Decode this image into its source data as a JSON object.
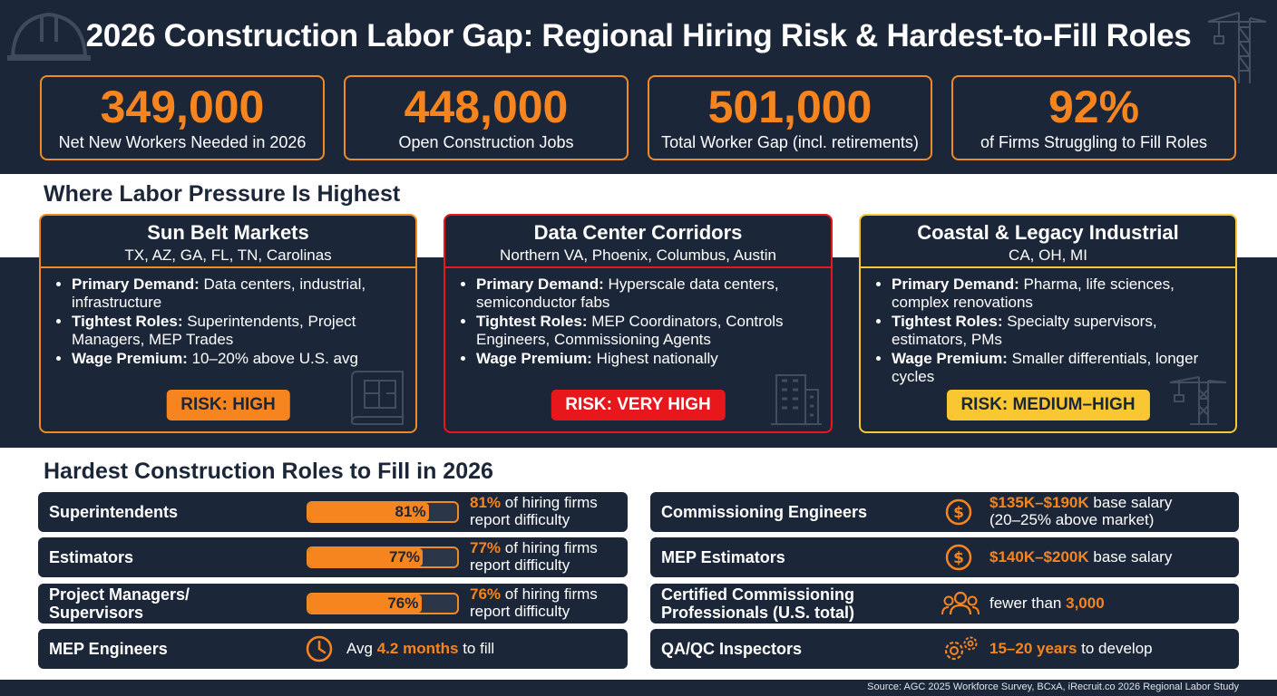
{
  "title": "2026 Construction Labor Gap: Regional Hiring Risk & Hardest-to-Fill Roles",
  "colors": {
    "navy": "#1b2638",
    "orange": "#f7851f",
    "red": "#e8171b",
    "yellow": "#f8c731"
  },
  "kpis": [
    {
      "value": "349,000",
      "label": "Net New Workers Needed in 2026"
    },
    {
      "value": "448,000",
      "label": "Open Construction Jobs"
    },
    {
      "value": "501,000",
      "label": "Total Worker Gap (incl. retirements)"
    },
    {
      "value": "92%",
      "label": "of Firms Struggling to Fill Roles"
    }
  ],
  "pressure": {
    "title": "Where Labor Pressure Is Highest",
    "labels": {
      "demand": "Primary Demand:",
      "roles": "Tightest Roles:",
      "wage": "Wage Premium:"
    },
    "regions": [
      {
        "name": "Sun Belt Markets",
        "places": "TX, AZ, GA, FL, TN, Carolinas",
        "demand": "Data centers, industrial, infrastructure",
        "roles": "Superintendents, Project Managers, MEP Trades",
        "wage": "10–20% above U.S. avg",
        "risk": "RISK: HIGH",
        "color": "#f08a24",
        "icon": "blueprint-icon"
      },
      {
        "name": "Data Center Corridors",
        "places": "Northern VA, Phoenix, Columbus, Austin",
        "demand": "Hyperscale data centers, semiconductor fabs",
        "roles": "MEP Coordinators, Controls Engineers, Commissioning Agents",
        "wage": "Highest nationally",
        "risk": "RISK: VERY HIGH",
        "color": "#e8171b",
        "icon": "building-icon"
      },
      {
        "name": "Coastal & Legacy Industrial",
        "places": "CA, OH, MI",
        "demand": "Pharma, life sciences, complex renovations",
        "roles": "Specialty supervisors, estimators, PMs",
        "wage": "Smaller differentials, longer cycles",
        "risk": "RISK: MEDIUM–HIGH",
        "color": "#f8c731",
        "icon": "crane-icon"
      }
    ]
  },
  "roles": {
    "title": "Hardest Construction Roles to Fill in 2026",
    "difficulty_suffix": " of hiring firms",
    "difficulty_line2": "report difficulty",
    "left": [
      {
        "name": "Superintendents",
        "pct": 81,
        "pct_label": "81%"
      },
      {
        "name": "Estimators",
        "pct": 77,
        "pct_label": "77%"
      },
      {
        "name": "Project Managers/ Supervisors",
        "pct": 76,
        "pct_label": "76%"
      },
      {
        "name": "MEP Engineers",
        "icon": "clock-icon",
        "pre": "Avg ",
        "hl": "4.2 months",
        "post": " to fill"
      }
    ],
    "right": [
      {
        "name": "Commissioning Engineers",
        "icon": "dollar-icon",
        "hl": "$135K–$190K",
        "post": " base salary",
        "line2": "(20–25% above market)"
      },
      {
        "name": "MEP Estimators",
        "icon": "dollar-icon",
        "hl": "$140K–$200K",
        "post": " base salary",
        "line2": ""
      },
      {
        "name": "Certified Commissioning Professionals (U.S. total)",
        "icon": "people-icon",
        "pre": "fewer than ",
        "hl": "3,000",
        "post": ""
      },
      {
        "name": "QA/QC Inspectors",
        "icon": "gears-icon",
        "hl": "15–20 years",
        "post": " to develop"
      }
    ]
  },
  "source": "Source: AGC 2025 Workforce Survey, BCxA, iRecruit.co 2026 Regional Labor Study"
}
